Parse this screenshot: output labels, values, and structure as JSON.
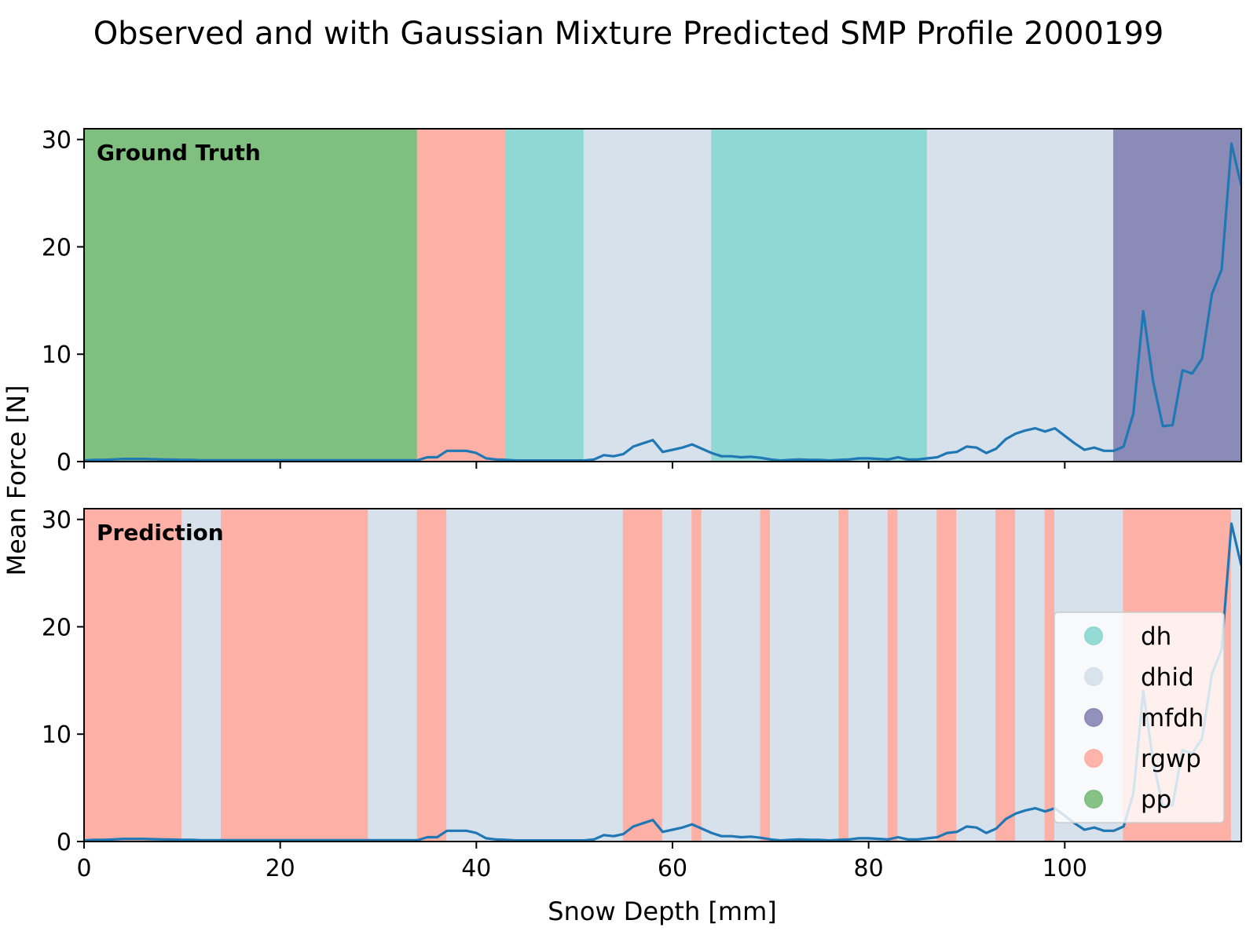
{
  "chart_data": {
    "type": "line",
    "title": "Observed and with Gaussian Mixture Predicted SMP Profile 2000199",
    "xlabel": "Snow Depth [mm]",
    "ylabel": "Mean Force [N]",
    "xlim": [
      0,
      118
    ],
    "ylim": [
      0,
      31
    ],
    "x_ticks": [
      0,
      20,
      40,
      60,
      80,
      100
    ],
    "y_ticks": [
      0,
      10,
      20,
      30
    ],
    "grid": false,
    "colors": {
      "line": "#1f77b4",
      "dh": "#8fd8d3",
      "dhid": "#d7e1ec",
      "mfdh": "#8b8bb8",
      "rgwp": "#fdb0a5",
      "pp": "#7fbf7f"
    },
    "legend": {
      "placement": "lower-right (bottom panel)",
      "items": [
        "dh",
        "dhid",
        "mfdh",
        "rgwp",
        "pp"
      ]
    },
    "series": {
      "x": [
        0,
        1,
        2,
        3,
        4,
        5,
        6,
        7,
        8,
        9,
        10,
        11,
        12,
        13,
        14,
        15,
        16,
        17,
        18,
        19,
        20,
        21,
        22,
        23,
        24,
        25,
        26,
        27,
        28,
        29,
        30,
        31,
        32,
        33,
        34,
        35,
        36,
        37,
        38,
        39,
        40,
        41,
        42,
        43,
        44,
        45,
        46,
        47,
        48,
        49,
        50,
        51,
        52,
        53,
        54,
        55,
        56,
        57,
        58,
        59,
        60,
        61,
        62,
        63,
        64,
        65,
        66,
        67,
        68,
        69,
        70,
        71,
        72,
        73,
        74,
        75,
        76,
        77,
        78,
        79,
        80,
        81,
        82,
        83,
        84,
        85,
        86,
        87,
        88,
        89,
        90,
        91,
        92,
        93,
        94,
        95,
        96,
        97,
        98,
        99,
        100,
        101,
        102,
        103,
        104,
        105,
        106,
        107,
        108,
        109,
        110,
        111,
        112,
        113,
        114,
        115,
        116,
        117,
        118
      ],
      "y": [
        0.1,
        0.15,
        0.15,
        0.2,
        0.25,
        0.25,
        0.25,
        0.22,
        0.2,
        0.18,
        0.15,
        0.15,
        0.12,
        0.12,
        0.12,
        0.12,
        0.12,
        0.12,
        0.12,
        0.12,
        0.12,
        0.12,
        0.12,
        0.12,
        0.12,
        0.12,
        0.12,
        0.12,
        0.12,
        0.12,
        0.12,
        0.12,
        0.12,
        0.12,
        0.12,
        0.4,
        0.4,
        1.0,
        1.0,
        1.0,
        0.8,
        0.3,
        0.2,
        0.15,
        0.1,
        0.1,
        0.1,
        0.1,
        0.1,
        0.1,
        0.1,
        0.1,
        0.2,
        0.6,
        0.5,
        0.7,
        1.4,
        1.7,
        2.0,
        0.9,
        1.1,
        1.3,
        1.6,
        1.2,
        0.8,
        0.5,
        0.5,
        0.4,
        0.45,
        0.35,
        0.2,
        0.1,
        0.15,
        0.2,
        0.15,
        0.15,
        0.1,
        0.15,
        0.2,
        0.3,
        0.3,
        0.25,
        0.2,
        0.4,
        0.2,
        0.2,
        0.3,
        0.4,
        0.8,
        0.9,
        1.4,
        1.3,
        0.8,
        1.2,
        2.1,
        2.6,
        2.9,
        3.1,
        2.8,
        3.1,
        2.4,
        1.7,
        1.1,
        1.3,
        1.0,
        1.0,
        1.4,
        4.5,
        14.0,
        7.5,
        3.3,
        3.4,
        8.5,
        8.2,
        9.6,
        15.6,
        17.9,
        29.6,
        25.7
      ]
    },
    "panels": [
      {
        "label": "Ground Truth",
        "segments": [
          {
            "start": 0,
            "end": 34,
            "class": "pp"
          },
          {
            "start": 34,
            "end": 43,
            "class": "rgwp"
          },
          {
            "start": 43,
            "end": 51,
            "class": "dh"
          },
          {
            "start": 51,
            "end": 64,
            "class": "dhid"
          },
          {
            "start": 64,
            "end": 86,
            "class": "dh"
          },
          {
            "start": 86,
            "end": 105,
            "class": "dhid"
          },
          {
            "start": 105,
            "end": 118,
            "class": "mfdh"
          }
        ]
      },
      {
        "label": "Prediction",
        "segments": [
          {
            "start": 0,
            "end": 10,
            "class": "rgwp"
          },
          {
            "start": 10,
            "end": 14,
            "class": "dhid"
          },
          {
            "start": 14,
            "end": 29,
            "class": "rgwp"
          },
          {
            "start": 29,
            "end": 34,
            "class": "dhid"
          },
          {
            "start": 34,
            "end": 37,
            "class": "rgwp"
          },
          {
            "start": 37,
            "end": 55,
            "class": "dhid"
          },
          {
            "start": 55,
            "end": 59,
            "class": "rgwp"
          },
          {
            "start": 59,
            "end": 62,
            "class": "dhid"
          },
          {
            "start": 62,
            "end": 63,
            "class": "rgwp"
          },
          {
            "start": 63,
            "end": 69,
            "class": "dhid"
          },
          {
            "start": 69,
            "end": 70,
            "class": "rgwp"
          },
          {
            "start": 70,
            "end": 77,
            "class": "dhid"
          },
          {
            "start": 77,
            "end": 78,
            "class": "rgwp"
          },
          {
            "start": 78,
            "end": 82,
            "class": "dhid"
          },
          {
            "start": 82,
            "end": 83,
            "class": "rgwp"
          },
          {
            "start": 83,
            "end": 87,
            "class": "dhid"
          },
          {
            "start": 87,
            "end": 89,
            "class": "rgwp"
          },
          {
            "start": 89,
            "end": 93,
            "class": "dhid"
          },
          {
            "start": 93,
            "end": 95,
            "class": "rgwp"
          },
          {
            "start": 95,
            "end": 98,
            "class": "dhid"
          },
          {
            "start": 98,
            "end": 99,
            "class": "rgwp"
          },
          {
            "start": 99,
            "end": 106,
            "class": "dhid"
          },
          {
            "start": 106,
            "end": 117,
            "class": "rgwp"
          },
          {
            "start": 117,
            "end": 118,
            "class": "dhid"
          }
        ]
      }
    ]
  }
}
